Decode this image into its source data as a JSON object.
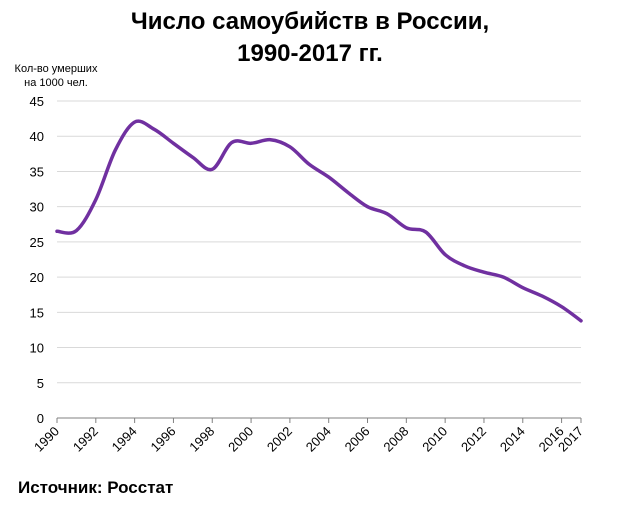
{
  "chart_data": {
    "type": "line",
    "title_lines": [
      "Число самоубийств в России,",
      "1990-2017 гг."
    ],
    "ylabel_lines": [
      "Кол-во умерших",
      "на 1000 чел."
    ],
    "xlabel": "",
    "ylim": [
      0,
      45
    ],
    "yticks": [
      0,
      5,
      10,
      15,
      20,
      25,
      30,
      35,
      40,
      45
    ],
    "xlim": [
      1990,
      2017
    ],
    "xticks": [
      1990,
      1992,
      1994,
      1996,
      1998,
      2000,
      2002,
      2004,
      2006,
      2008,
      2010,
      2012,
      2014,
      2016,
      2017
    ],
    "grid": true,
    "line_color": "#7030A0",
    "series": [
      {
        "x": [
          1990,
          1991,
          1992,
          1993,
          1994,
          1995,
          1996,
          1997,
          1998,
          1999,
          2000,
          2001,
          2002,
          2003,
          2004,
          2005,
          2006,
          2007,
          2008,
          2009,
          2010,
          2011,
          2012,
          2013,
          2014,
          2015,
          2016,
          2017
        ],
        "values": [
          26.5,
          26.6,
          31.0,
          38.0,
          42.0,
          41.0,
          39.0,
          37.0,
          35.3,
          39.1,
          39.0,
          39.5,
          38.5,
          36.0,
          34.2,
          32.0,
          30.0,
          29.0,
          27.0,
          26.4,
          23.2,
          21.6,
          20.7,
          20.0,
          18.5,
          17.3,
          15.8,
          13.8
        ]
      }
    ]
  },
  "source": "Источник: Росстат"
}
